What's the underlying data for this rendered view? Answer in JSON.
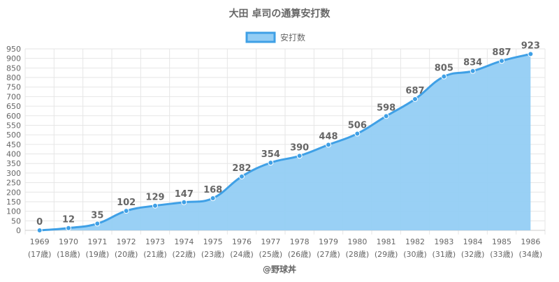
{
  "chart_data": {
    "type": "area",
    "title": "大田 卓司の通算安打数",
    "legend": {
      "label": "安打数",
      "placement": "top-center"
    },
    "series": [
      {
        "name": "安打数",
        "values": [
          0,
          12,
          35,
          102,
          129,
          147,
          168,
          282,
          354,
          390,
          448,
          506,
          598,
          687,
          805,
          834,
          887,
          923
        ]
      }
    ],
    "categories": [
      "1969",
      "1970",
      "1971",
      "1972",
      "1973",
      "1974",
      "1975",
      "1976",
      "1977",
      "1978",
      "1979",
      "1980",
      "1981",
      "1982",
      "1983",
      "1984",
      "1985",
      "1986"
    ],
    "category_sublabels": [
      "(17歳)",
      "(18歳)",
      "(19歳)",
      "(20歳)",
      "(21歳)",
      "(22歳)",
      "(23歳)",
      "(24歳)",
      "(25歳)",
      "(26歳)",
      "(27歳)",
      "(28歳)",
      "(29歳)",
      "(30歳)",
      "(31歳)",
      "(32歳)",
      "(33歳)",
      "(34歳)"
    ],
    "ylim": [
      0,
      950
    ],
    "ytick_step": 50,
    "grid": true,
    "colors": {
      "line": "#3fa0e6",
      "fill": "#93cdf4",
      "point": "#3fa0e6"
    }
  },
  "footer": {
    "text": "@野球丼"
  }
}
